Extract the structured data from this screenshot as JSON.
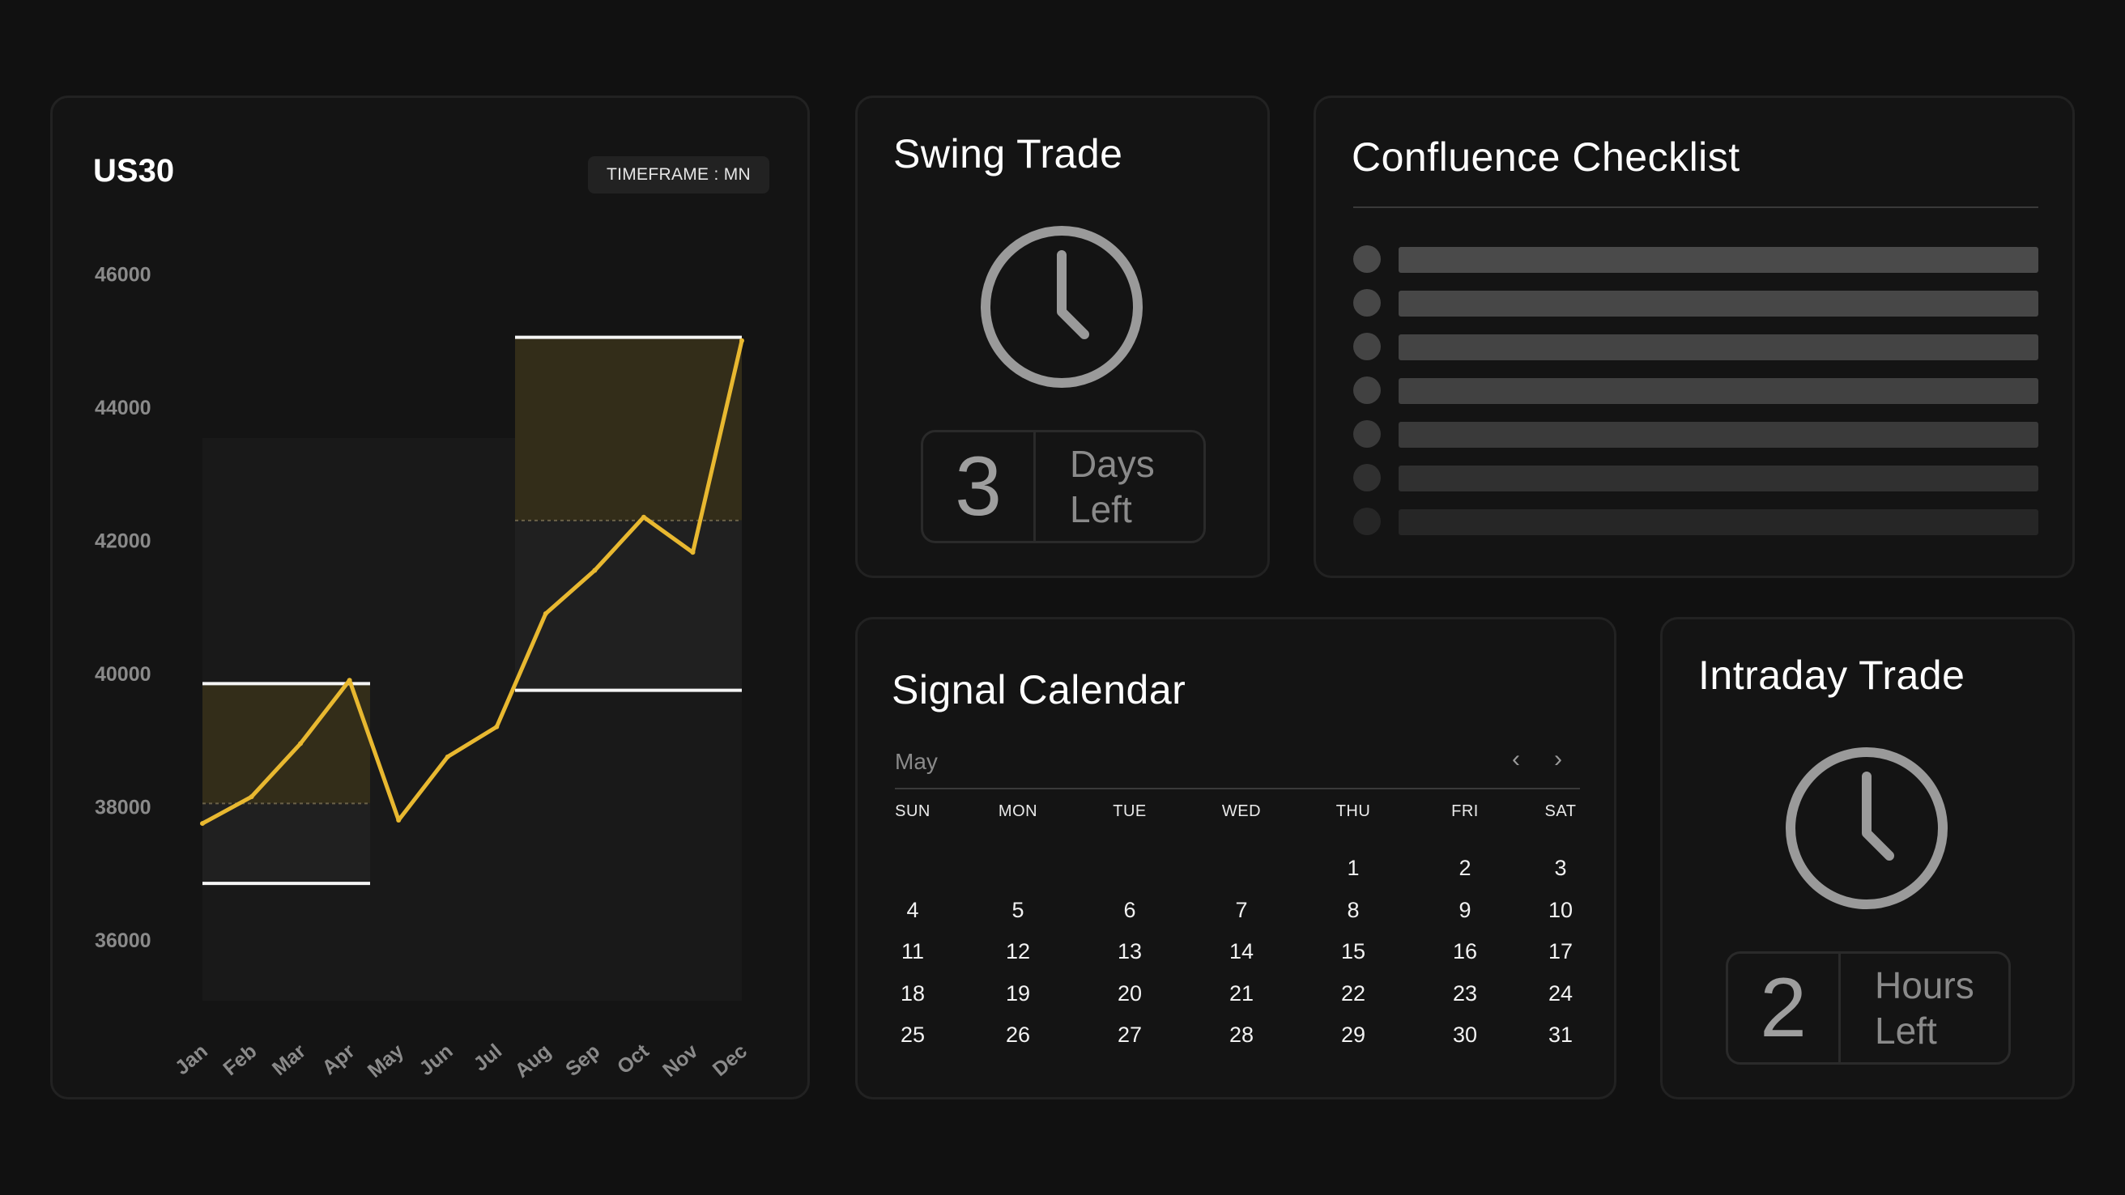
{
  "chart": {
    "title": "US30",
    "timeframe": "TIMEFRAME : MN",
    "colors": {
      "line": "#e8b830",
      "zone_top": "#332d19",
      "zone_bottom": "#202020",
      "bg": "#191919"
    }
  },
  "chart_data": {
    "type": "line",
    "title": "US30",
    "categories": [
      "Jan",
      "Feb",
      "Mar",
      "Apr",
      "May",
      "Jun",
      "Jul",
      "Aug",
      "Sep",
      "Oct",
      "Nov",
      "Dec"
    ],
    "yticks": [
      46000,
      44000,
      42000,
      40000,
      38000,
      36000
    ],
    "ylim": [
      35000,
      47000
    ],
    "series": [
      {
        "values": [
          37750,
          38150,
          38950,
          39900,
          37800,
          38750,
          39200,
          40900,
          41550,
          42350,
          41820,
          45000
        ]
      }
    ],
    "zones": [
      {
        "from_index": 0,
        "to_index": 3,
        "high": 39850,
        "mid": 38050,
        "low": 36850
      },
      {
        "from_index": 7,
        "to_index": 11,
        "high": 45050,
        "mid": 42300,
        "low": 39750
      }
    ],
    "grid": false,
    "legend": "none"
  },
  "swing": {
    "title": "Swing Trade",
    "count": "3",
    "unit_line1": "Days",
    "unit_line2": "Left"
  },
  "intraday": {
    "title": "Intraday Trade",
    "count": "2",
    "unit_line1": "Hours",
    "unit_line2": "Left"
  },
  "checklist": {
    "title": "Confluence Checklist",
    "items": 7,
    "colors": [
      "#4a4a4a",
      "#474747",
      "#444444",
      "#414141",
      "#3a3a3a",
      "#303030",
      "#262626"
    ]
  },
  "calendar": {
    "title": "Signal Calendar",
    "month": "May",
    "prev": "‹",
    "next": "›",
    "weekdays": [
      "SUN",
      "MON",
      "TUE",
      "WED",
      "THU",
      "FRI",
      "SAT"
    ],
    "weeks": [
      [
        "",
        "",
        "",
        "",
        "1",
        "2",
        "3"
      ],
      [
        "4",
        "5",
        "6",
        "7",
        "8",
        "9",
        "10"
      ],
      [
        "11",
        "12",
        "13",
        "14",
        "15",
        "16",
        "17"
      ],
      [
        "18",
        "19",
        "20",
        "21",
        "22",
        "23",
        "24"
      ],
      [
        "25",
        "26",
        "27",
        "28",
        "29",
        "30",
        "31"
      ]
    ]
  }
}
